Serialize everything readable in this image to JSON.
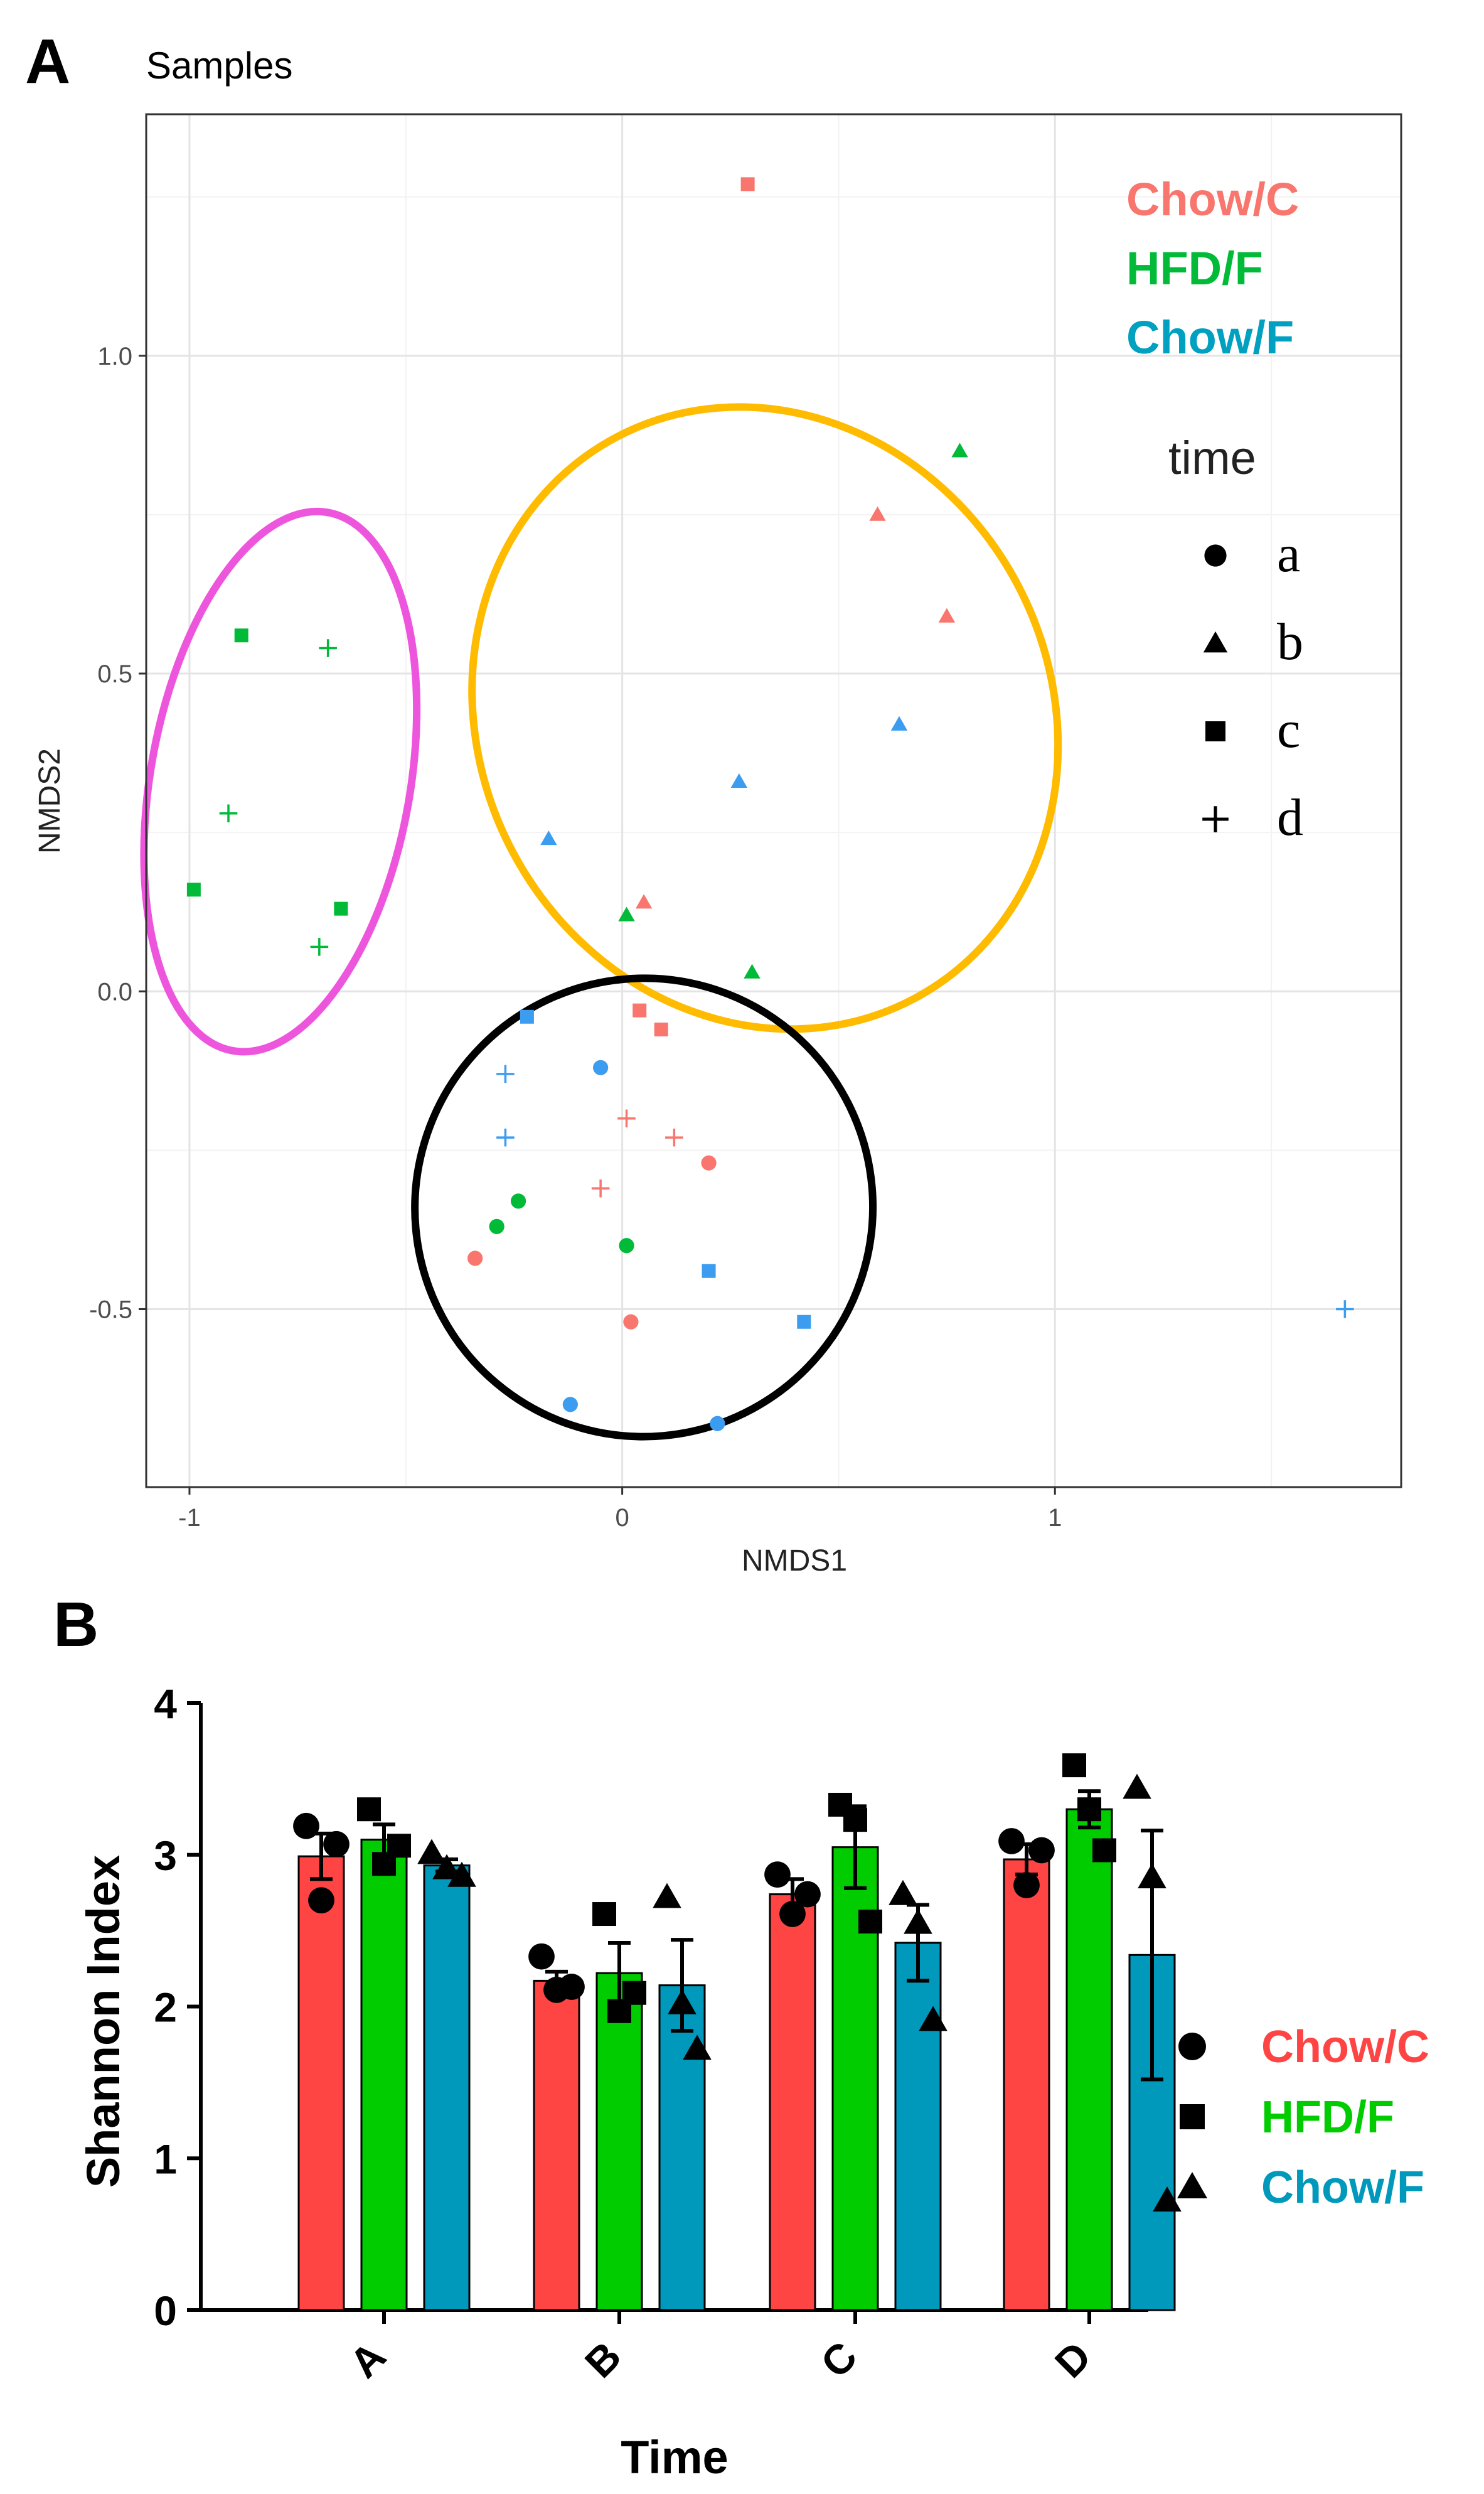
{
  "panel_a": {
    "label": "A",
    "chart_data": {
      "type": "scatter",
      "title": "Samples",
      "xlabel": "NMDS1",
      "ylabel": "NMDS2",
      "xlim": [
        -1.1,
        1.8
      ],
      "ylim": [
        -0.78,
        1.38
      ],
      "x_ticks": [
        -1,
        0,
        1
      ],
      "x_tick_labels": [
        "-1",
        "0",
        "1"
      ],
      "y_ticks": [
        -0.5,
        0.0,
        0.5,
        1.0
      ],
      "y_tick_labels": [
        "-0.5",
        "0.0",
        "0.5",
        "1.0"
      ],
      "grid": true,
      "legend_groups": [
        {
          "name": "Chow/C",
          "color": "#f8766d"
        },
        {
          "name": "HFD/F",
          "color": "#00ba38"
        },
        {
          "name": "Chow/F",
          "color": "#3c9cf0"
        }
      ],
      "legend_time_title": "time",
      "legend_time": [
        {
          "label": "a",
          "shape": "circle"
        },
        {
          "label": "b",
          "shape": "triangle"
        },
        {
          "label": "c",
          "shape": "square"
        },
        {
          "label": "d",
          "shape": "plus"
        }
      ],
      "points": [
        {
          "group": "Chow/C",
          "time": "c",
          "x": 0.29,
          "y": 1.27
        },
        {
          "group": "Chow/C",
          "time": "b",
          "x": 0.59,
          "y": 0.75
        },
        {
          "group": "Chow/C",
          "time": "b",
          "x": 0.75,
          "y": 0.59
        },
        {
          "group": "Chow/C",
          "time": "b",
          "x": 0.05,
          "y": 0.14
        },
        {
          "group": "Chow/C",
          "time": "c",
          "x": 0.04,
          "y": -0.03
        },
        {
          "group": "Chow/C",
          "time": "c",
          "x": 0.09,
          "y": -0.06
        },
        {
          "group": "Chow/C",
          "time": "d",
          "x": 0.01,
          "y": -0.2
        },
        {
          "group": "Chow/C",
          "time": "d",
          "x": 0.12,
          "y": -0.23
        },
        {
          "group": "Chow/C",
          "time": "d",
          "x": -0.05,
          "y": -0.31
        },
        {
          "group": "Chow/C",
          "time": "a",
          "x": 0.2,
          "y": -0.27
        },
        {
          "group": "Chow/C",
          "time": "a",
          "x": -0.34,
          "y": -0.42
        },
        {
          "group": "Chow/C",
          "time": "a",
          "x": 0.02,
          "y": -0.52
        },
        {
          "group": "HFD/F",
          "time": "b",
          "x": 0.78,
          "y": 0.85
        },
        {
          "group": "HFD/F",
          "time": "b",
          "x": 0.01,
          "y": 0.12
        },
        {
          "group": "HFD/F",
          "time": "b",
          "x": 0.3,
          "y": 0.03
        },
        {
          "group": "HFD/F",
          "time": "c",
          "x": -0.88,
          "y": 0.56
        },
        {
          "group": "HFD/F",
          "time": "c",
          "x": -0.99,
          "y": 0.16
        },
        {
          "group": "HFD/F",
          "time": "c",
          "x": -0.65,
          "y": 0.13
        },
        {
          "group": "HFD/F",
          "time": "d",
          "x": -0.68,
          "y": 0.54
        },
        {
          "group": "HFD/F",
          "time": "d",
          "x": -0.91,
          "y": 0.28
        },
        {
          "group": "HFD/F",
          "time": "d",
          "x": -0.7,
          "y": 0.07
        },
        {
          "group": "HFD/F",
          "time": "a",
          "x": -0.24,
          "y": -0.33
        },
        {
          "group": "HFD/F",
          "time": "a",
          "x": -0.29,
          "y": -0.37
        },
        {
          "group": "HFD/F",
          "time": "a",
          "x": 0.01,
          "y": -0.4
        },
        {
          "group": "Chow/F",
          "time": "b",
          "x": 0.64,
          "y": 0.42
        },
        {
          "group": "Chow/F",
          "time": "b",
          "x": 0.27,
          "y": 0.33
        },
        {
          "group": "Chow/F",
          "time": "b",
          "x": -0.17,
          "y": 0.24
        },
        {
          "group": "Chow/F",
          "time": "c",
          "x": -0.22,
          "y": -0.04
        },
        {
          "group": "Chow/F",
          "time": "c",
          "x": 0.2,
          "y": -0.44
        },
        {
          "group": "Chow/F",
          "time": "c",
          "x": 0.42,
          "y": -0.52
        },
        {
          "group": "Chow/F",
          "time": "d",
          "x": -0.27,
          "y": -0.13
        },
        {
          "group": "Chow/F",
          "time": "d",
          "x": -0.27,
          "y": -0.23
        },
        {
          "group": "Chow/F",
          "time": "d",
          "x": 1.67,
          "y": -0.5
        },
        {
          "group": "Chow/F",
          "time": "a",
          "x": -0.05,
          "y": -0.12
        },
        {
          "group": "Chow/F",
          "time": "a",
          "x": -0.12,
          "y": -0.65
        },
        {
          "group": "Chow/F",
          "time": "a",
          "x": 0.22,
          "y": -0.68
        }
      ],
      "ellipses": [
        {
          "name": "pink-ellipse",
          "color": "#ee55dd",
          "cx": -0.79,
          "cy": 0.33,
          "rx": 0.3,
          "ry": 0.43,
          "angle": 10
        },
        {
          "name": "orange-ellipse",
          "color": "#ffbb00",
          "cx": 0.33,
          "cy": 0.43,
          "rx": 0.66,
          "ry": 0.5,
          "angle": -28
        },
        {
          "name": "black-ellipse",
          "color": "#000000",
          "cx": 0.05,
          "cy": -0.34,
          "rx": 0.53,
          "ry": 0.36,
          "angle": -50
        }
      ]
    }
  },
  "panel_b": {
    "label": "B",
    "chart_data": {
      "type": "bar",
      "xlabel": "Time",
      "ylabel": "Shannon Index",
      "ylim": [
        0,
        4
      ],
      "y_ticks": [
        0,
        1,
        2,
        3,
        4
      ],
      "y_tick_labels": [
        "0",
        "1",
        "2",
        "3",
        "4"
      ],
      "categories": [
        "A",
        "B",
        "C",
        "D"
      ],
      "series": [
        {
          "name": "Chow/C",
          "color": "#ff4444",
          "marker": "circle",
          "values": [
            2.99,
            2.17,
            2.74,
            2.97
          ],
          "errors": [
            0.15,
            0.06,
            0.1,
            0.1
          ],
          "points": [
            [
              3.19,
              2.7,
              3.07
            ],
            [
              2.33,
              2.11,
              2.13
            ],
            [
              2.87,
              2.61,
              2.74
            ],
            [
              3.09,
              2.8,
              3.03
            ]
          ]
        },
        {
          "name": "HFD/F",
          "color": "#00cc00",
          "marker": "square",
          "values": [
            3.1,
            2.22,
            3.05,
            3.3
          ],
          "errors": [
            0.1,
            0.2,
            0.27,
            0.12
          ],
          "points": [
            [
              3.3,
              2.94,
              3.06
            ],
            [
              2.61,
              1.97,
              2.09
            ],
            [
              3.33,
              3.23,
              2.56
            ],
            [
              3.59,
              3.3,
              3.03
            ]
          ]
        },
        {
          "name": "Chow/F",
          "color": "#0099bb",
          "marker": "triangle",
          "values": [
            2.93,
            2.14,
            2.42,
            2.34
          ],
          "errors": [
            0.04,
            0.3,
            0.25,
            0.82
          ],
          "points": [
            [
              3.01,
              2.91,
              2.86
            ],
            [
              2.72,
              2.02,
              1.72
            ],
            [
              2.74,
              2.55,
              1.91
            ],
            [
              3.44,
              2.85,
              0.72
            ]
          ]
        }
      ]
    }
  }
}
